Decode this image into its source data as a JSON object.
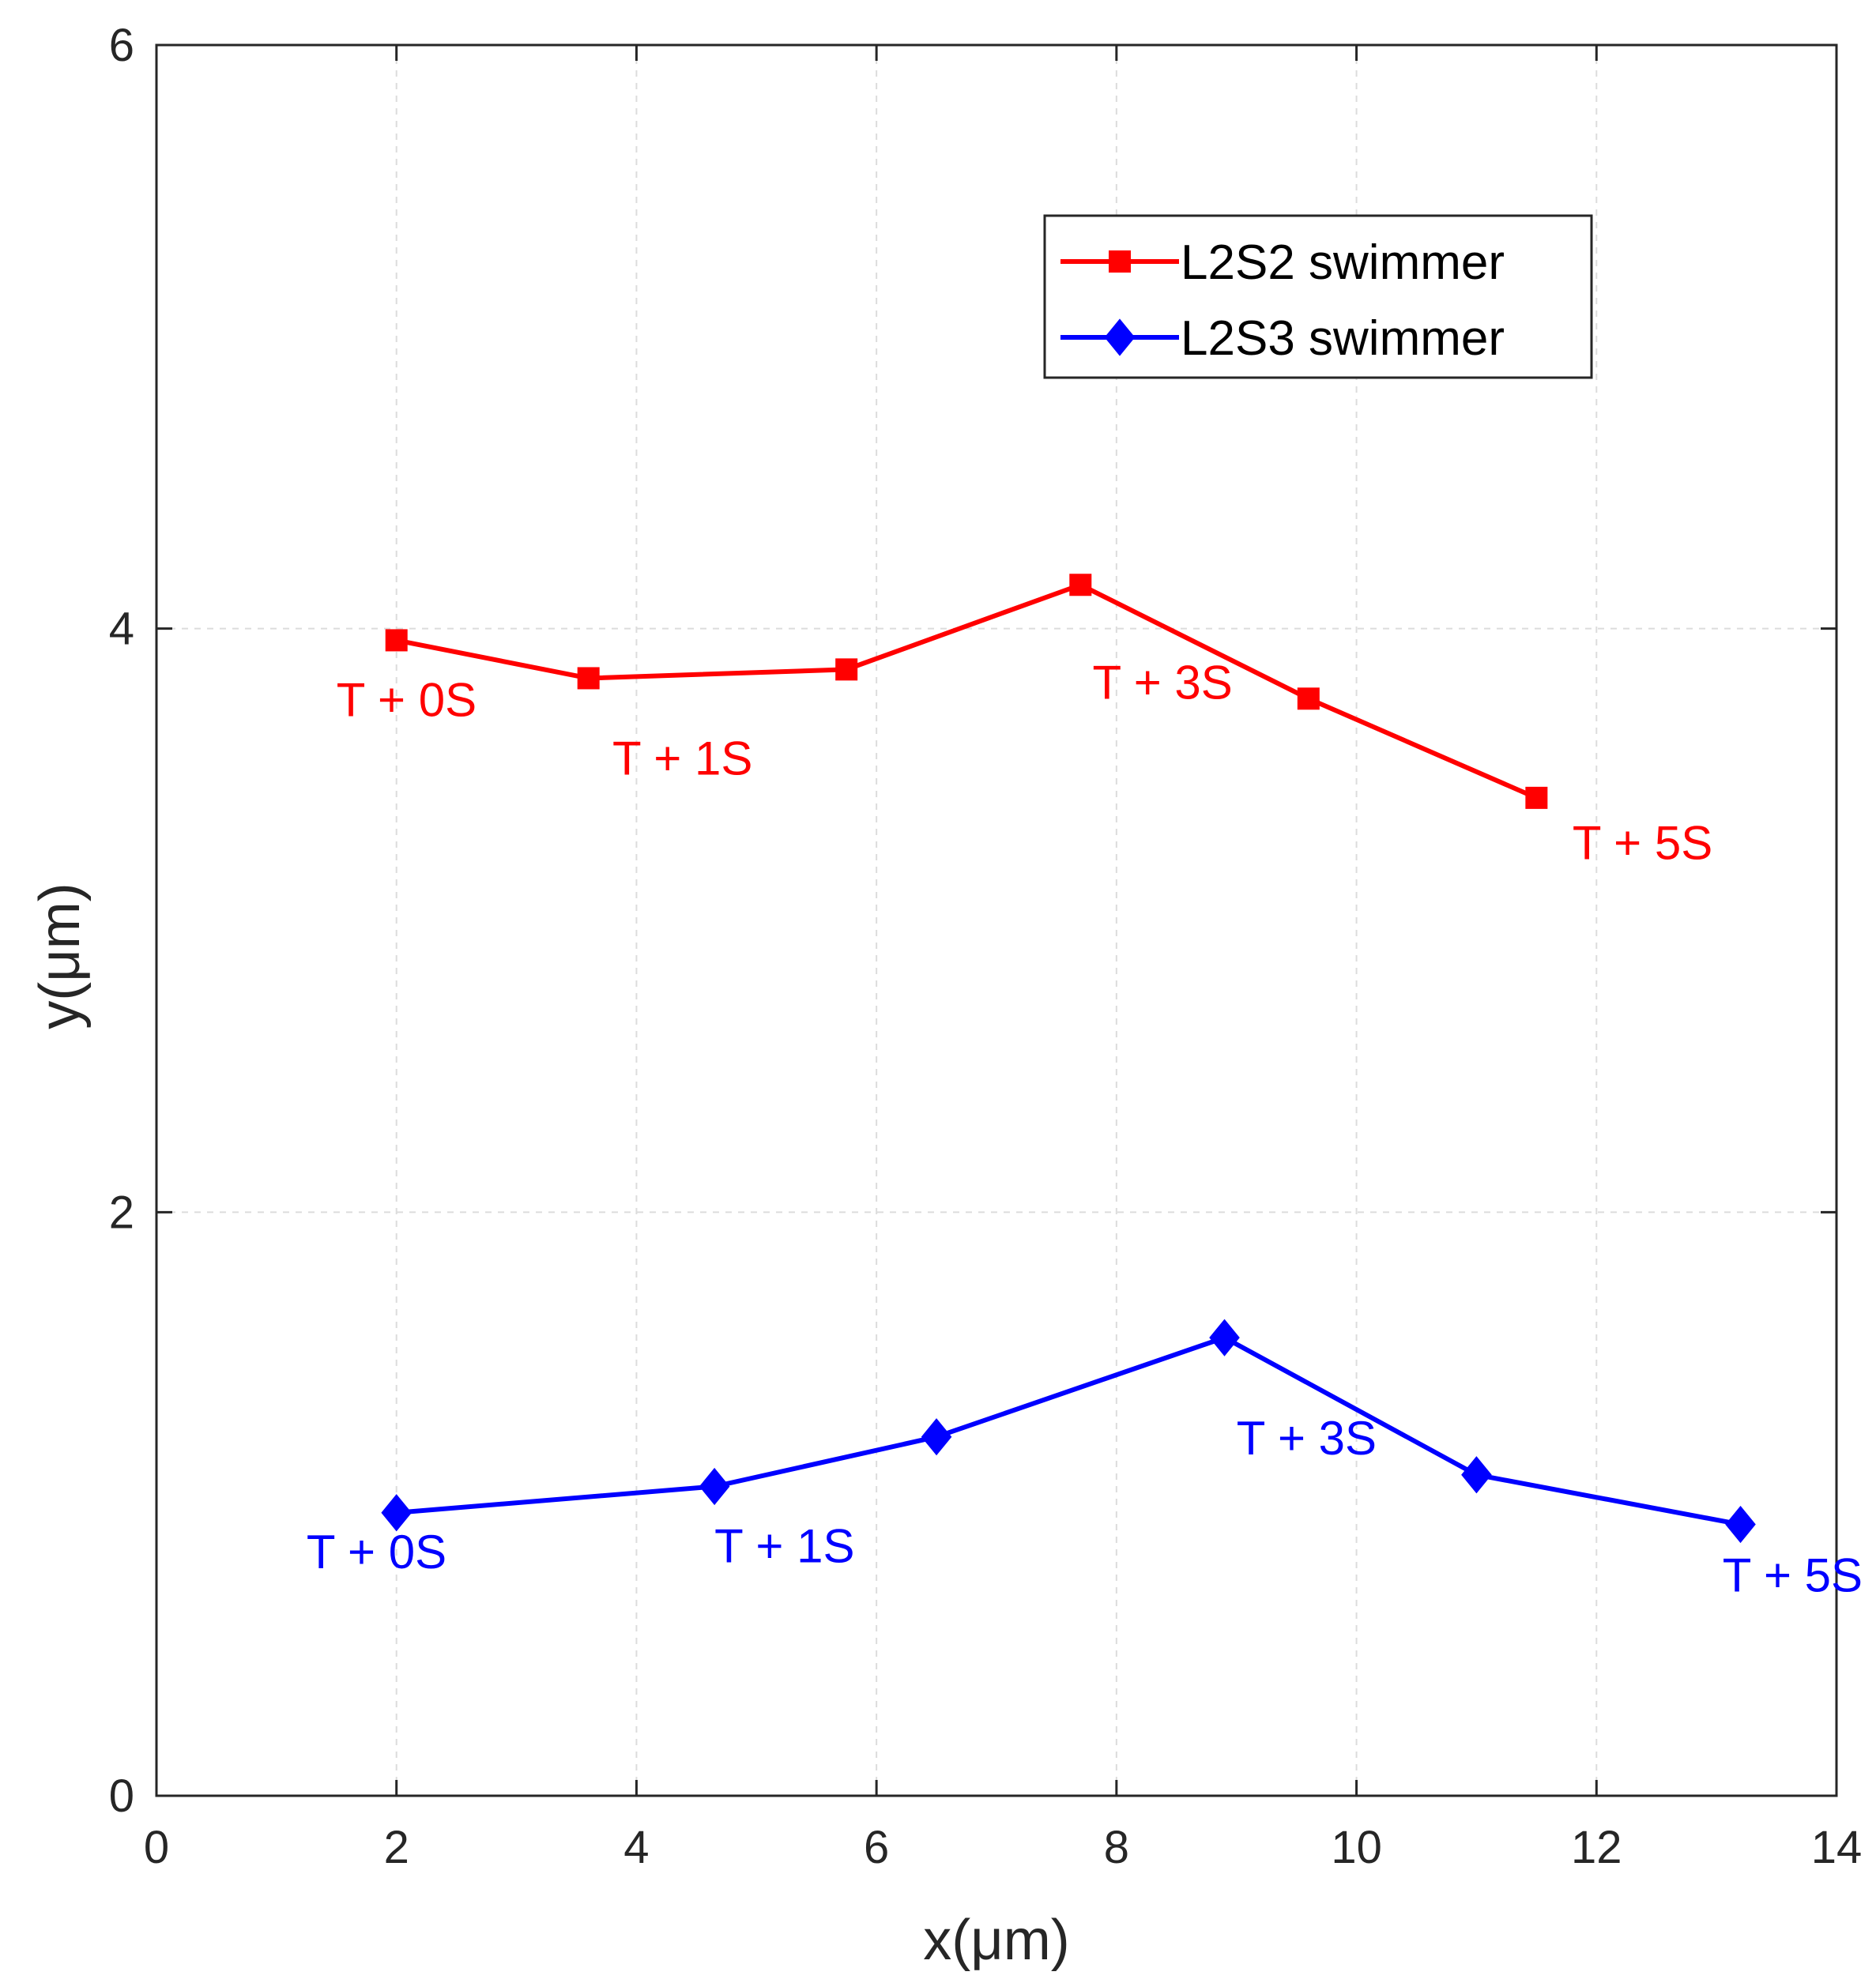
{
  "chart_data": {
    "type": "line",
    "title": "",
    "xlabel": "x(μm)",
    "ylabel": "y(μm)",
    "xlim": [
      0,
      14
    ],
    "ylim": [
      0,
      6
    ],
    "xticks": [
      0,
      2,
      4,
      6,
      8,
      10,
      12,
      14
    ],
    "xtick_labels": [
      "0",
      "2",
      "4",
      "6",
      "8",
      "10",
      "12",
      "14"
    ],
    "yticks": [
      0,
      2,
      4,
      6
    ],
    "ytick_labels": [
      "0",
      "2",
      "4",
      "6"
    ],
    "grid": true,
    "legend_position": "top-right",
    "series": [
      {
        "name": "L2S2 swimmer",
        "color": "#ff0000",
        "marker": "square",
        "x": [
          2.0,
          3.6,
          5.75,
          7.7,
          9.6,
          11.5
        ],
        "y": [
          3.96,
          3.83,
          3.86,
          4.15,
          3.76,
          3.42
        ]
      },
      {
        "name": "L2S3 swimmer",
        "color": "#0000ff",
        "marker": "diamond",
        "x": [
          2.0,
          4.65,
          6.5,
          8.9,
          11.0,
          13.2
        ],
        "y": [
          0.97,
          1.06,
          1.23,
          1.57,
          1.1,
          0.93
        ]
      }
    ],
    "annotations": [
      {
        "text": "T + 0S",
        "x": 1.5,
        "y": 3.7,
        "color": "#ff0000"
      },
      {
        "text": "T + 1S",
        "x": 3.8,
        "y": 3.5,
        "color": "#ff0000"
      },
      {
        "text": "T + 3S",
        "x": 7.8,
        "y": 3.76,
        "color": "#ff0000"
      },
      {
        "text": "T + 5S",
        "x": 11.8,
        "y": 3.21,
        "color": "#ff0000"
      },
      {
        "text": "T + 0S",
        "x": 1.25,
        "y": 0.78,
        "color": "#0000ff"
      },
      {
        "text": "T + 1S",
        "x": 4.65,
        "y": 0.8,
        "color": "#0000ff"
      },
      {
        "text": "T + 3S",
        "x": 9.0,
        "y": 1.17,
        "color": "#0000ff"
      },
      {
        "text": "T + 5S",
        "x": 13.05,
        "y": 0.7,
        "color": "#0000ff"
      }
    ]
  }
}
